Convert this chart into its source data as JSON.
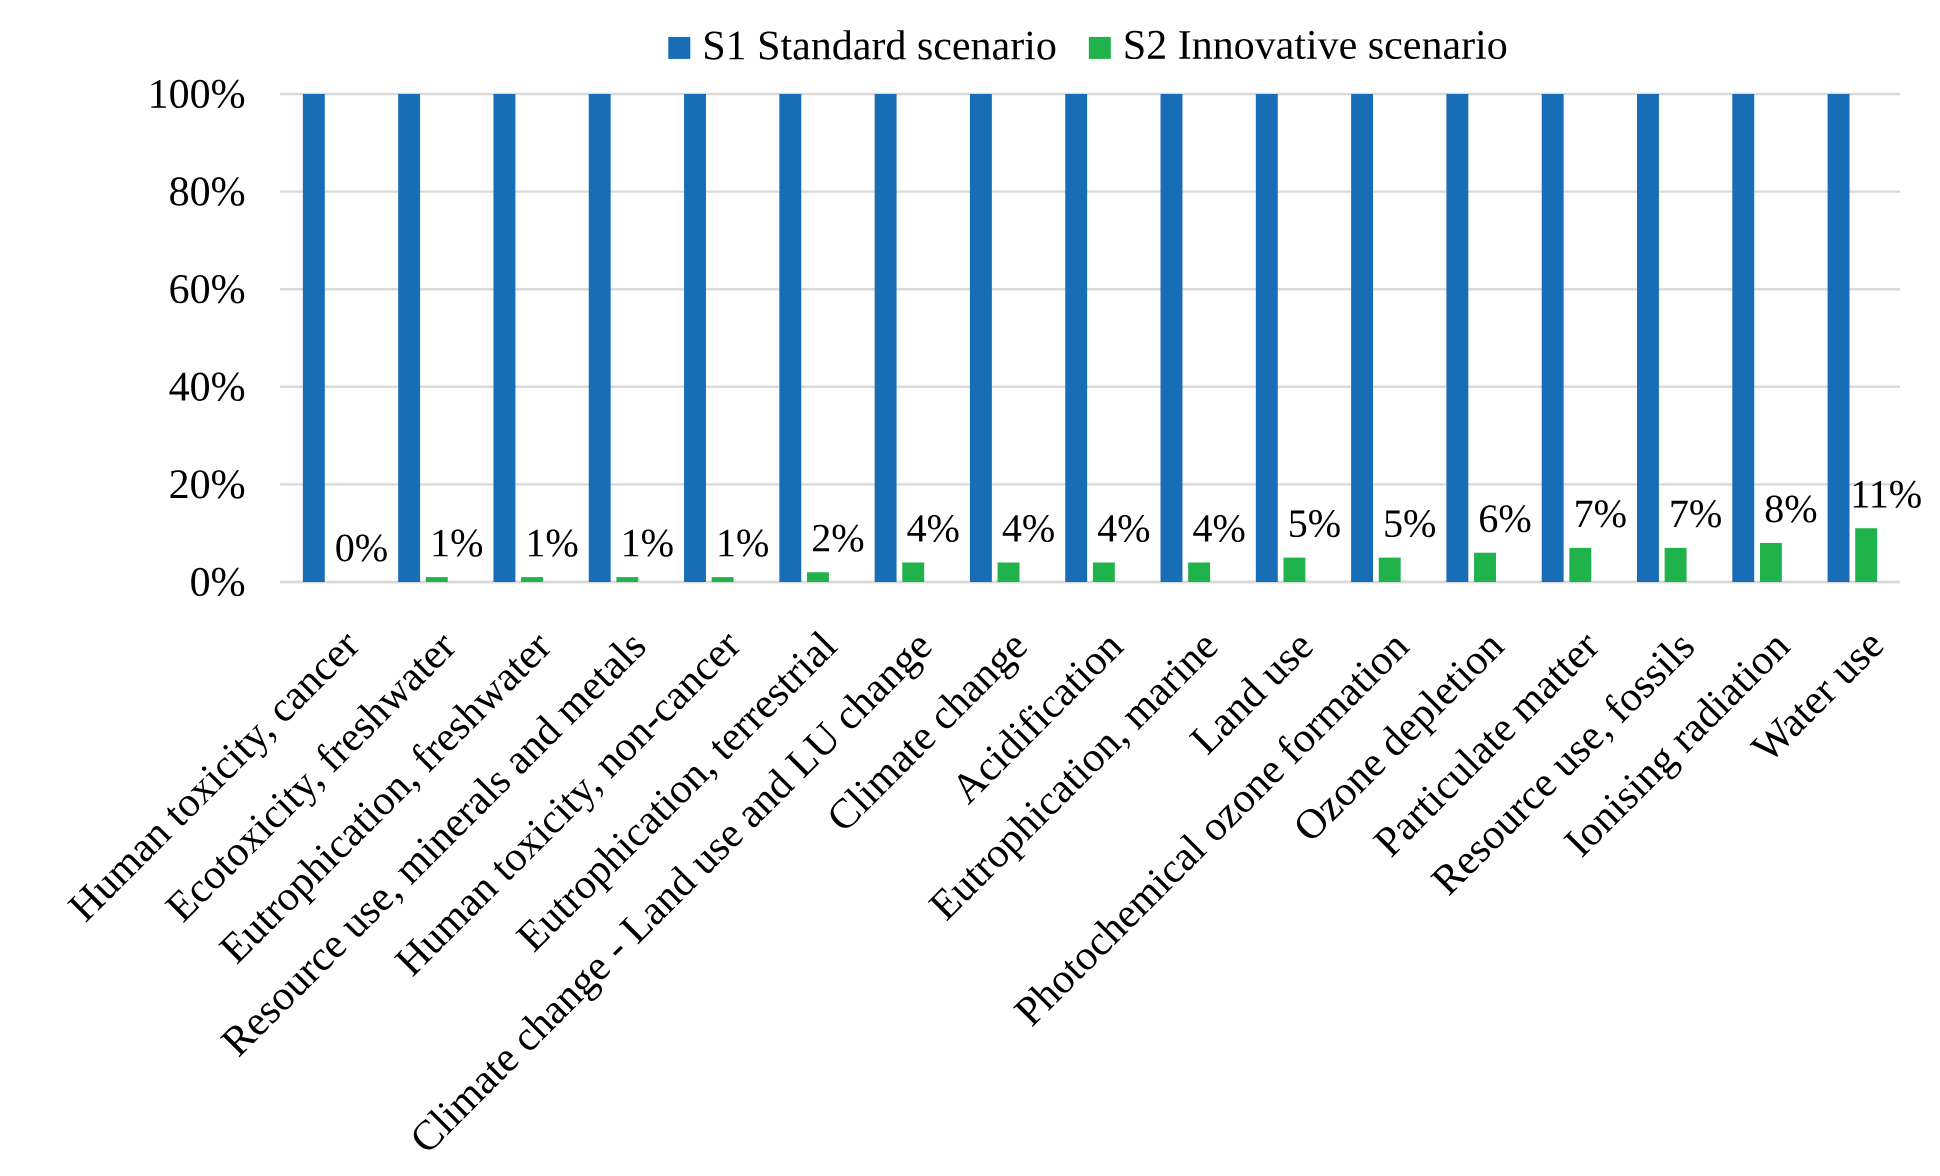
{
  "chart_data": {
    "type": "bar",
    "categories": [
      "Human toxicity, cancer",
      "Ecotoxicity, freshwater",
      "Eutrophication, freshwater",
      "Resource use, minerals and metals",
      "Human toxicity, non-cancer",
      "Eutrophication, terrestrial",
      "Climate change - Land use and LU change",
      "Climate change",
      "Acidification",
      "Eutrophication, marine",
      "Land use",
      "Photochemical ozone formation",
      "Ozone depletion",
      "Particulate matter",
      "Resource use, fossils",
      "Ionising radiation",
      "Water use"
    ],
    "series": [
      {
        "name": "S1 Standard scenario",
        "color": "#176db6",
        "values": [
          100,
          100,
          100,
          100,
          100,
          100,
          100,
          100,
          100,
          100,
          100,
          100,
          100,
          100,
          100,
          100,
          100
        ]
      },
      {
        "name": "S2 Innovative scenario",
        "color": "#20b24b",
        "values": [
          0,
          1,
          1,
          1,
          1,
          2,
          4,
          4,
          4,
          4,
          5,
          5,
          6,
          7,
          7,
          8,
          11
        ],
        "value_labels": [
          "0%",
          "1%",
          "1%",
          "1%",
          "1%",
          "2%",
          "4%",
          "4%",
          "4%",
          "4%",
          "5%",
          "5%",
          "6%",
          "7%",
          "7%",
          "8%",
          "11%"
        ]
      }
    ],
    "ylim": [
      0,
      100
    ],
    "yticks": [
      {
        "value": 0,
        "label": "0%"
      },
      {
        "value": 20,
        "label": "20%"
      },
      {
        "value": 40,
        "label": "40%"
      },
      {
        "value": 60,
        "label": "60%"
      },
      {
        "value": 80,
        "label": "80%"
      },
      {
        "value": 100,
        "label": "100%"
      }
    ],
    "grid": "y",
    "legend": "top"
  }
}
